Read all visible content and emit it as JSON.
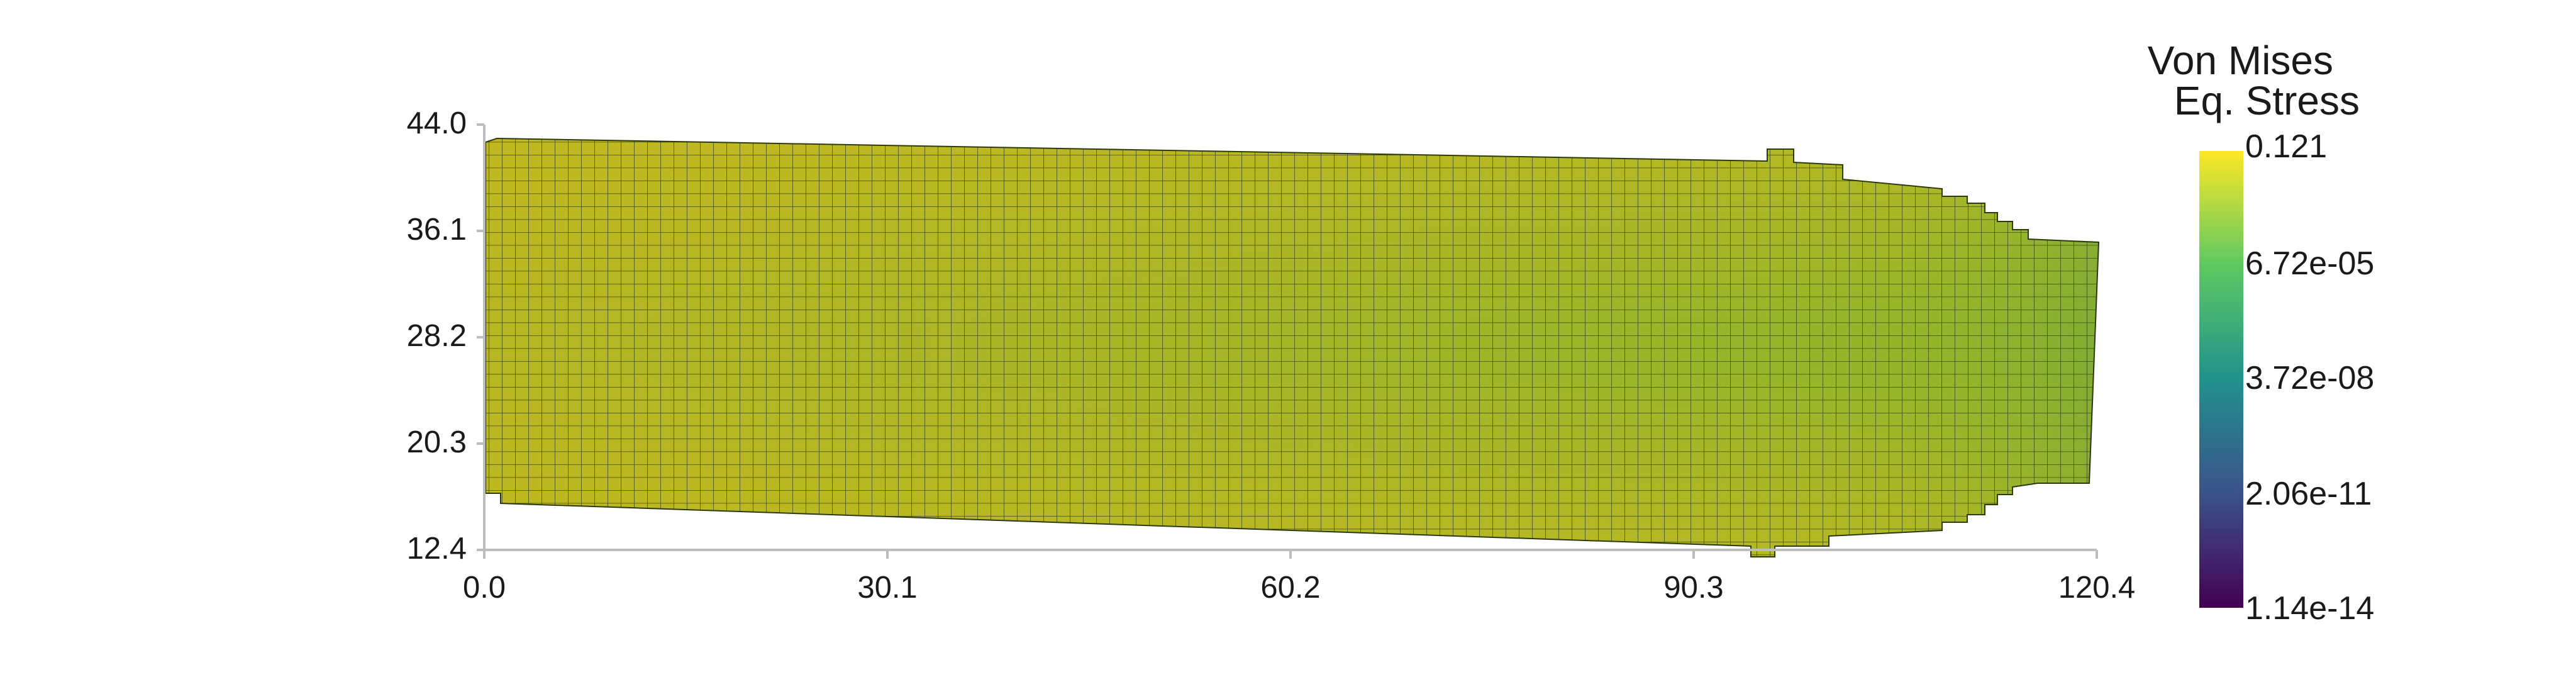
{
  "plot": {
    "x_axis": {
      "ticks": [
        "0.0",
        "30.1",
        "60.2",
        "90.3",
        "120.4"
      ]
    },
    "y_axis": {
      "ticks": [
        "12.4",
        "20.3",
        "28.2",
        "36.1",
        "44.0"
      ]
    }
  },
  "colorbar": {
    "title_line1": "Von Mises",
    "title_line2": "Eq. Stress",
    "labels": [
      "0.121",
      "6.72e-05",
      "3.72e-08",
      "2.06e-11",
      "1.14e-14"
    ],
    "colormap": "viridis",
    "colors": [
      "#440154",
      "#3b528b",
      "#21918c",
      "#5ec962",
      "#fde725"
    ]
  },
  "mesh": {
    "fill_color": "#aab823",
    "center_band_color": "#86b232",
    "right_end_color": "#6fa63c",
    "grid_line_color": "#2a3a0a"
  }
}
